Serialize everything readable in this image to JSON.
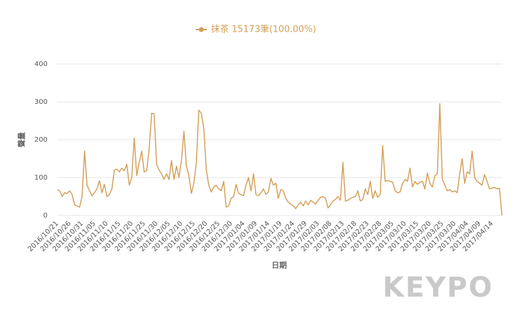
{
  "chart_data": {
    "type": "line",
    "x_label": "日期",
    "y_label": "聲量",
    "categories": [
      "2016/10/21",
      null,
      null,
      null,
      null,
      "2016/10/26",
      null,
      null,
      null,
      null,
      "2016/10/31",
      null,
      null,
      null,
      null,
      "2016/11/05",
      null,
      null,
      null,
      null,
      "2016/11/10",
      null,
      null,
      null,
      null,
      "2016/11/15",
      null,
      null,
      null,
      null,
      "2016/11/20",
      null,
      null,
      null,
      null,
      "2016/11/25",
      null,
      null,
      null,
      null,
      "2016/11/30",
      null,
      null,
      null,
      null,
      "2016/12/05",
      null,
      null,
      null,
      null,
      "2016/12/10",
      null,
      null,
      null,
      null,
      "2016/12/15",
      null,
      null,
      null,
      null,
      "2016/12/20",
      null,
      null,
      null,
      null,
      "2016/12/25",
      null,
      null,
      null,
      null,
      "2016/12/30",
      null,
      null,
      null,
      null,
      "2017/01/04",
      null,
      null,
      null,
      null,
      "2017/01/09",
      null,
      null,
      null,
      null,
      "2017/01/14",
      null,
      null,
      null,
      null,
      "2017/01/19",
      null,
      null,
      null,
      null,
      "2017/01/24",
      null,
      null,
      null,
      null,
      "2017/01/29",
      null,
      null,
      null,
      null,
      "2017/02/03",
      null,
      null,
      null,
      null,
      "2017/02/08",
      null,
      null,
      null,
      null,
      "2017/02/13",
      null,
      null,
      null,
      null,
      "2017/02/18",
      null,
      null,
      null,
      null,
      "2017/02/23",
      null,
      null,
      null,
      null,
      "2017/02/28",
      null,
      null,
      null,
      null,
      "2017/03/05",
      null,
      null,
      null,
      null,
      "2017/03/10",
      null,
      null,
      null,
      null,
      "2017/03/15",
      null,
      null,
      null,
      null,
      "2017/03/20",
      null,
      null,
      null,
      null,
      "2017/03/25",
      null,
      null,
      null,
      null,
      "2017/03/30",
      null,
      null,
      null,
      null,
      "2017/04/04",
      null,
      null,
      null,
      null,
      "2017/04/09",
      null,
      null,
      null,
      null,
      "2017/04/14",
      null,
      null,
      null,
      null
    ],
    "series": [
      {
        "name": "抹茶 15173筆(100.00%)",
        "color": "#d4a05a",
        "values": [
          68,
          65,
          50,
          60,
          58,
          65,
          55,
          28,
          25,
          22,
          50,
          170,
          80,
          65,
          52,
          60,
          70,
          92,
          60,
          82,
          50,
          55,
          70,
          120,
          122,
          115,
          125,
          118,
          135,
          80,
          100,
          205,
          105,
          140,
          170,
          115,
          118,
          175,
          270,
          268,
          135,
          120,
          110,
          95,
          110,
          95,
          145,
          95,
          130,
          100,
          145,
          222,
          130,
          105,
          58,
          85,
          140,
          278,
          270,
          230,
          120,
          80,
          62,
          75,
          80,
          70,
          65,
          90,
          22,
          25,
          45,
          50,
          82,
          58,
          55,
          52,
          80,
          100,
          65,
          110,
          55,
          52,
          60,
          70,
          55,
          62,
          98,
          80,
          85,
          45,
          68,
          65,
          45,
          35,
          30,
          25,
          18,
          28,
          35,
          25,
          38,
          28,
          40,
          35,
          30,
          40,
          48,
          50,
          45,
          20,
          28,
          38,
          42,
          50,
          40,
          140,
          38,
          40,
          45,
          48,
          50,
          65,
          38,
          42,
          70,
          55,
          90,
          45,
          65,
          48,
          55,
          185,
          90,
          92,
          90,
          88,
          65,
          60,
          62,
          85,
          95,
          90,
          125,
          75,
          90,
          82,
          88,
          90,
          70,
          112,
          85,
          75,
          105,
          110,
          295,
          95,
          80,
          65,
          68,
          62,
          65,
          60,
          110,
          150,
          85,
          115,
          110,
          170,
          100,
          90,
          85,
          80,
          108,
          90,
          70,
          72,
          74,
          70,
          72,
          0
        ]
      }
    ],
    "ylim": [
      0,
      400
    ],
    "yticks": [
      0,
      100,
      200,
      300,
      400
    ],
    "grid": true
  },
  "watermark": "KEYPO"
}
